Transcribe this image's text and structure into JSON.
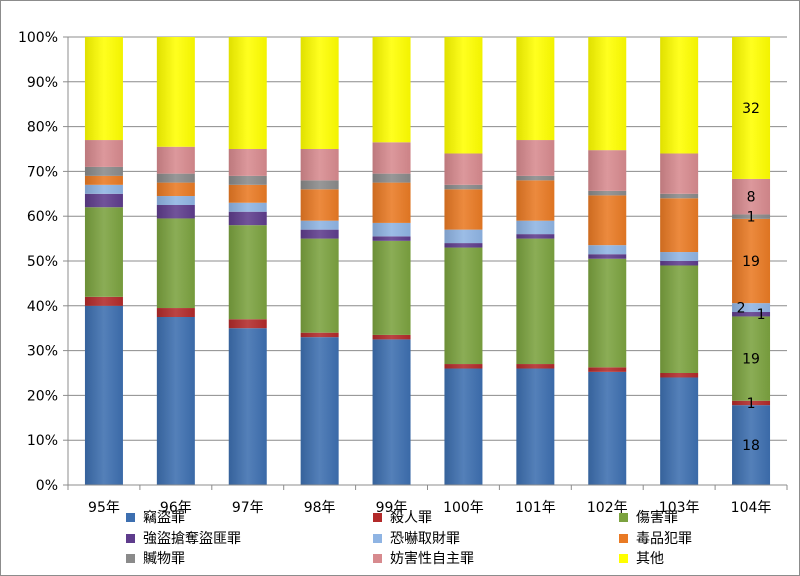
{
  "chart_data": {
    "type": "bar",
    "stacked": "percent",
    "categories": [
      "95年",
      "96年",
      "97年",
      "98年",
      "99年",
      "100年",
      "101年",
      "102年",
      "103年",
      "104年"
    ],
    "y_ticks": [
      "0%",
      "10%",
      "20%",
      "30%",
      "40%",
      "50%",
      "60%",
      "70%",
      "80%",
      "90%",
      "100%"
    ],
    "ylim": [
      0,
      100
    ],
    "grid": true,
    "legend_position": "bottom",
    "series": [
      {
        "name": "竊盜罪",
        "color": "#3d6fb0",
        "values": [
          40,
          37.5,
          35,
          33,
          32.5,
          26,
          26,
          25,
          24,
          18
        ]
      },
      {
        "name": "殺人罪",
        "color": "#b22a2a",
        "values": [
          2,
          2,
          2,
          1,
          1,
          1,
          1,
          1,
          1,
          1
        ]
      },
      {
        "name": "傷害罪",
        "color": "#7ba23f",
        "values": [
          20,
          20,
          21,
          21,
          21,
          26,
          28,
          24,
          24,
          19
        ]
      },
      {
        "name": "強盜搶奪盜匪罪",
        "color": "#5e3c8c",
        "values": [
          3,
          3,
          3,
          2,
          1,
          1,
          1,
          1,
          1,
          1
        ]
      },
      {
        "name": "恐嚇取財罪",
        "color": "#8fb4e3",
        "values": [
          2,
          2,
          2,
          2,
          3,
          3,
          3,
          2,
          2,
          2
        ]
      },
      {
        "name": "毒品犯罪",
        "color": "#e97a24",
        "values": [
          2,
          3,
          4,
          7,
          9,
          9,
          9,
          11,
          12,
          19
        ]
      },
      {
        "name": "贓物罪",
        "color": "#8a8a8a",
        "values": [
          2,
          2,
          2,
          2,
          2,
          1,
          1,
          1,
          1,
          1
        ]
      },
      {
        "name": "妨害性自主罪",
        "color": "#d78a8e",
        "values": [
          6,
          6,
          6,
          7,
          7,
          7,
          8,
          9,
          9,
          8
        ]
      },
      {
        "name": "其他",
        "color": "#ffff00",
        "values": [
          23,
          24.5,
          25,
          25,
          23.5,
          26,
          23,
          25,
          26,
          32
        ]
      }
    ],
    "data_labels": {
      "category": "104年",
      "labels": [
        {
          "series": "竊盜罪",
          "text": "18"
        },
        {
          "series": "殺人罪",
          "text": "1"
        },
        {
          "series": "傷害罪",
          "text": "19"
        },
        {
          "series": "強盜搶奪盜匪罪",
          "text": "1"
        },
        {
          "series": "恐嚇取財罪",
          "text": "2"
        },
        {
          "series": "毒品犯罪",
          "text": "19"
        },
        {
          "series": "贓物罪",
          "text": "1"
        },
        {
          "series": "妨害性自主罪",
          "text": "8"
        },
        {
          "series": "其他",
          "text": "32"
        }
      ]
    }
  }
}
